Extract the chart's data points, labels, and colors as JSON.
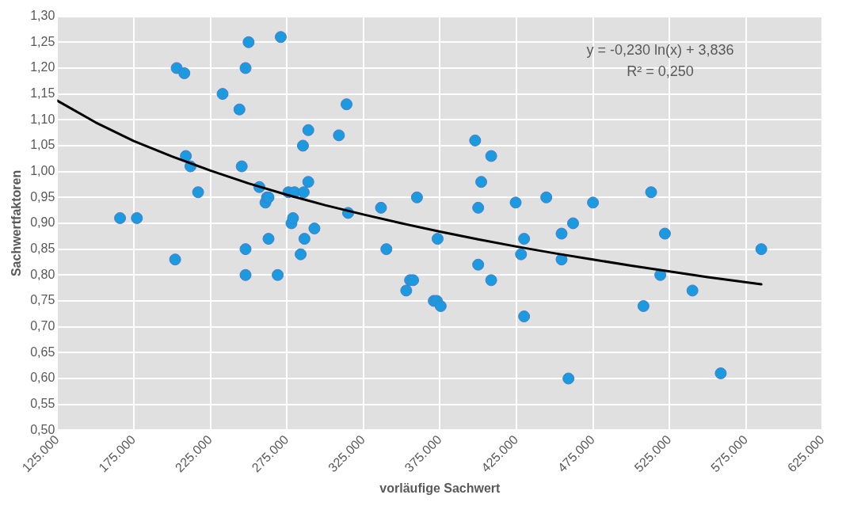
{
  "chart_data": {
    "type": "scatter",
    "xlabel": "vorläufige Sachwert",
    "ylabel": "Sachwertfaktoren",
    "xlim": [
      125000,
      625000
    ],
    "xticks": [
      {
        "value": 125000,
        "label": "125.000"
      },
      {
        "value": 175000,
        "label": "175.000"
      },
      {
        "value": 225000,
        "label": "225.000"
      },
      {
        "value": 275000,
        "label": "275.000"
      },
      {
        "value": 325000,
        "label": "325.000"
      },
      {
        "value": 375000,
        "label": "375.000"
      },
      {
        "value": 425000,
        "label": "425.000"
      },
      {
        "value": 475000,
        "label": "475.000"
      },
      {
        "value": 525000,
        "label": "525.000"
      },
      {
        "value": 575000,
        "label": "575.000"
      },
      {
        "value": 625000,
        "label": "625.000"
      }
    ],
    "ylim": [
      0.5,
      1.3
    ],
    "yticks": [
      {
        "value": 0.5,
        "label": "0,50"
      },
      {
        "value": 0.55,
        "label": "0,55"
      },
      {
        "value": 0.6,
        "label": "0,60"
      },
      {
        "value": 0.65,
        "label": "0,65"
      },
      {
        "value": 0.7,
        "label": "0,70"
      },
      {
        "value": 0.75,
        "label": "0,75"
      },
      {
        "value": 0.8,
        "label": "0,80"
      },
      {
        "value": 0.85,
        "label": "0,85"
      },
      {
        "value": 0.9,
        "label": "0,90"
      },
      {
        "value": 0.95,
        "label": "0,95"
      },
      {
        "value": 1.0,
        "label": "1,00"
      },
      {
        "value": 1.05,
        "label": "1,05"
      },
      {
        "value": 1.1,
        "label": "1,10"
      },
      {
        "value": 1.15,
        "label": "1,15"
      },
      {
        "value": 1.2,
        "label": "1,20"
      },
      {
        "value": 1.25,
        "label": "1,25"
      },
      {
        "value": 1.3,
        "label": "1,30"
      }
    ],
    "grid": true,
    "legend": false,
    "annotations": [
      "y = -0,230 ln(x) + 3,836",
      "R² = 0,250"
    ],
    "series": [
      {
        "marker": "circle",
        "color": "#1b9ae0",
        "x": [
          166000,
          177000,
          202000,
          203000,
          208000,
          209000,
          212000,
          217000,
          233000,
          244000,
          245500,
          248000,
          248000,
          248000,
          250000,
          257000,
          261000,
          262000,
          263000,
          263000,
          269000,
          271000,
          276000,
          278000,
          279000,
          280000,
          284000,
          285500,
          286000,
          286500,
          289000,
          289000,
          293000,
          309000,
          314000,
          315000,
          336500,
          340000,
          353000,
          355500,
          357500,
          360000,
          371000,
          373000,
          373500,
          375500,
          398000,
          400000,
          400000,
          402000,
          408500,
          408500,
          424500,
          428000,
          430000,
          430000,
          444500,
          454500,
          454500,
          459000,
          462000,
          475000,
          508000,
          513000,
          519000,
          522000,
          540000,
          558500,
          585000
        ],
        "values": [
          0.91,
          0.91,
          0.83,
          1.2,
          1.19,
          1.03,
          1.01,
          0.96,
          1.15,
          1.12,
          1.01,
          0.85,
          0.8,
          1.2,
          1.25,
          0.97,
          0.94,
          0.95,
          0.87,
          0.95,
          0.8,
          1.26,
          0.96,
          0.9,
          0.91,
          0.96,
          0.84,
          1.05,
          0.96,
          0.87,
          1.08,
          0.98,
          0.89,
          1.07,
          1.13,
          0.92,
          0.93,
          0.85,
          0.77,
          0.79,
          0.79,
          0.95,
          0.75,
          0.75,
          0.87,
          0.74,
          1.06,
          0.82,
          0.93,
          0.98,
          1.03,
          0.79,
          0.94,
          0.84,
          0.72,
          0.87,
          0.95,
          0.83,
          0.88,
          0.6,
          0.9,
          0.94,
          0.74,
          0.96,
          0.8,
          0.88,
          0.77,
          0.61,
          0.85
        ]
      },
      {
        "type": "line",
        "marker": "none",
        "color": "#000000",
        "x": [
          125000,
          150000,
          175000,
          200000,
          225000,
          250000,
          275000,
          300000,
          325000,
          350000,
          375000,
          400000,
          425000,
          450000,
          475000,
          500000,
          525000,
          550000,
          585000
        ],
        "values": [
          1.137,
          1.095,
          1.059,
          1.029,
          1.002,
          0.977,
          0.955,
          0.935,
          0.917,
          0.9,
          0.884,
          0.869,
          0.855,
          0.842,
          0.83,
          0.818,
          0.807,
          0.796,
          0.782
        ]
      }
    ]
  }
}
